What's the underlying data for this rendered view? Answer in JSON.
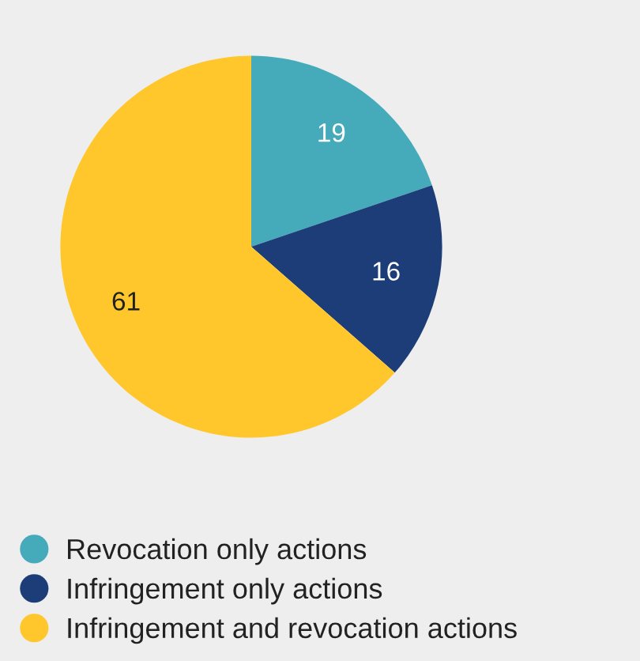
{
  "chart_data": {
    "type": "pie",
    "categories": [
      "Revocation only actions",
      "Infringement only actions",
      "Infringement and revocation actions"
    ],
    "values": [
      19,
      16,
      61
    ],
    "colors": [
      "#45abbb",
      "#1c3d78",
      "#ffc72c"
    ],
    "data_labels": true,
    "legend": "bottom"
  }
}
